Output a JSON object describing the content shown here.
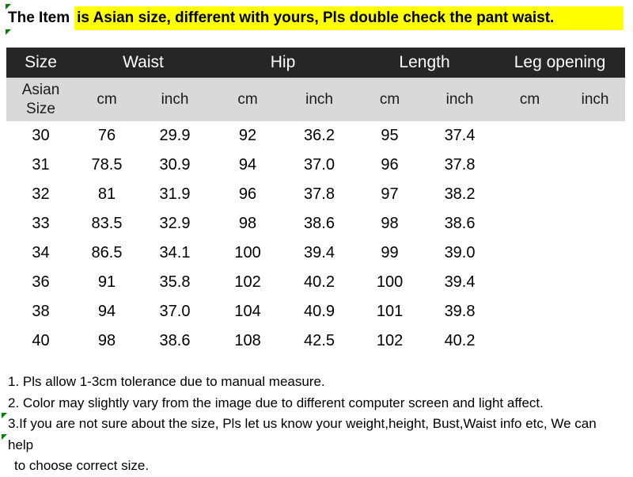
{
  "notice": {
    "prefix": "The Item",
    "highlight": "is Asian size, different with yours, Pls double check the pant waist.",
    "highlight_color": "#ffff00"
  },
  "table": {
    "header_bg": "#262626",
    "header_fg": "#ffffff",
    "subheader_bg": "#d9d9d9",
    "groups": [
      {
        "label": "Size",
        "span": 1
      },
      {
        "label": "Waist",
        "span": 2
      },
      {
        "label": "Hip",
        "span": 2
      },
      {
        "label": "Length",
        "span": 2
      },
      {
        "label": "Leg opening",
        "span": 2
      }
    ],
    "subheaders": [
      "Asian Size",
      "cm",
      "inch",
      "cm",
      "inch",
      "cm",
      "inch",
      "cm",
      "inch"
    ],
    "rows": [
      [
        "30",
        "76",
        "29.9",
        "92",
        "36.2",
        "95",
        "37.4",
        "",
        ""
      ],
      [
        "31",
        "78.5",
        "30.9",
        "94",
        "37.0",
        "96",
        "37.8",
        "",
        ""
      ],
      [
        "32",
        "81",
        "31.9",
        "96",
        "37.8",
        "97",
        "38.2",
        "",
        ""
      ],
      [
        "33",
        "83.5",
        "32.9",
        "98",
        "38.6",
        "98",
        "38.6",
        "",
        ""
      ],
      [
        "34",
        "86.5",
        "34.1",
        "100",
        "39.4",
        "99",
        "39.0",
        "",
        ""
      ],
      [
        "36",
        "91",
        "35.8",
        "102",
        "40.2",
        "100",
        "39.4",
        "",
        ""
      ],
      [
        "38",
        "94",
        "37.0",
        "104",
        "40.9",
        "101",
        "39.8",
        "",
        ""
      ],
      [
        "40",
        "98",
        "38.6",
        "108",
        "42.5",
        "102",
        "40.2",
        "",
        ""
      ]
    ]
  },
  "notes": [
    "1. Pls allow 1-3cm tolerance due to manual measure.",
    "2. Color may slightly vary from the image due to different computer screen and light affect.",
    "3.If you are not sure about the size, Pls let us know your weight,height, Bust,Waist info etc, We can help",
    "to choose correct size."
  ],
  "flag_color": "#008000"
}
